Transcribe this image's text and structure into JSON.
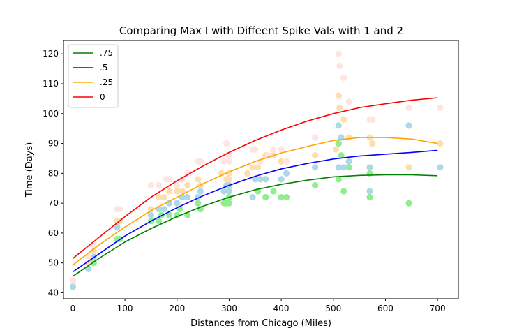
{
  "chart_data": {
    "type": "scatter",
    "title": "Comparing Max I with Diffeent Spike Vals with 1 and 2",
    "xlabel": "Distances from Chicago (Miles)",
    "ylabel": "Time (Days)",
    "xlim": [
      -18,
      740
    ],
    "ylim": [
      38,
      124.5
    ],
    "xticks": [
      0,
      100,
      200,
      300,
      400,
      500,
      600,
      700
    ],
    "yticks": [
      40,
      50,
      60,
      70,
      80,
      90,
      100,
      110,
      120
    ],
    "grid": false,
    "legend_position": "top-left",
    "scatter_series": [
      {
        "key": ".75",
        "color": "#90ee90",
        "points": [
          [
            0,
            44
          ],
          [
            30,
            48
          ],
          [
            40,
            50
          ],
          [
            85,
            58
          ],
          [
            90,
            58
          ],
          [
            150,
            64
          ],
          [
            165,
            64
          ],
          [
            170,
            66
          ],
          [
            185,
            66
          ],
          [
            200,
            66
          ],
          [
            205,
            68
          ],
          [
            220,
            66
          ],
          [
            240,
            70
          ],
          [
            245,
            68
          ],
          [
            290,
            70
          ],
          [
            295,
            70
          ],
          [
            300,
            72
          ],
          [
            300,
            70
          ],
          [
            345,
            72
          ],
          [
            355,
            74
          ],
          [
            370,
            72
          ],
          [
            385,
            74
          ],
          [
            400,
            72
          ],
          [
            410,
            72
          ],
          [
            465,
            76
          ],
          [
            510,
            78
          ],
          [
            510,
            90
          ],
          [
            515,
            86
          ],
          [
            520,
            74
          ],
          [
            530,
            82
          ],
          [
            570,
            72
          ],
          [
            570,
            80
          ],
          [
            645,
            70
          ]
        ]
      },
      {
        "key": ".5",
        "color": "#add8e6",
        "points": [
          [
            0,
            42
          ],
          [
            30,
            48
          ],
          [
            40,
            52
          ],
          [
            85,
            62
          ],
          [
            90,
            64
          ],
          [
            150,
            66
          ],
          [
            165,
            68
          ],
          [
            175,
            68
          ],
          [
            185,
            70
          ],
          [
            200,
            70
          ],
          [
            210,
            72
          ],
          [
            220,
            72
          ],
          [
            240,
            72
          ],
          [
            245,
            74
          ],
          [
            290,
            74
          ],
          [
            295,
            76
          ],
          [
            300,
            74
          ],
          [
            300,
            76
          ],
          [
            345,
            72
          ],
          [
            350,
            78
          ],
          [
            360,
            78
          ],
          [
            370,
            78
          ],
          [
            400,
            78
          ],
          [
            410,
            80
          ],
          [
            465,
            82
          ],
          [
            510,
            82
          ],
          [
            510,
            96
          ],
          [
            515,
            92
          ],
          [
            520,
            82
          ],
          [
            530,
            84
          ],
          [
            570,
            74
          ],
          [
            570,
            82
          ],
          [
            645,
            96
          ],
          [
            705,
            82
          ]
        ]
      },
      {
        "key": ".25",
        "color": "#ffdead",
        "points": [
          [
            0,
            44
          ],
          [
            30,
            50
          ],
          [
            40,
            54
          ],
          [
            85,
            64
          ],
          [
            90,
            64
          ],
          [
            150,
            68
          ],
          [
            165,
            72
          ],
          [
            175,
            72
          ],
          [
            185,
            74
          ],
          [
            200,
            74
          ],
          [
            210,
            74
          ],
          [
            220,
            76
          ],
          [
            240,
            78
          ],
          [
            245,
            76
          ],
          [
            285,
            80
          ],
          [
            295,
            78
          ],
          [
            300,
            80
          ],
          [
            300,
            78
          ],
          [
            335,
            80
          ],
          [
            345,
            82
          ],
          [
            355,
            82
          ],
          [
            370,
            86
          ],
          [
            385,
            86
          ],
          [
            400,
            84
          ],
          [
            410,
            84
          ],
          [
            465,
            86
          ],
          [
            505,
            88
          ],
          [
            510,
            106
          ],
          [
            512,
            102
          ],
          [
            520,
            98
          ],
          [
            530,
            92
          ],
          [
            570,
            92
          ],
          [
            575,
            90
          ],
          [
            645,
            82
          ],
          [
            705,
            90
          ]
        ]
      },
      {
        "key": "0",
        "color": "#ffe4e1",
        "points": [
          [
            0,
            44
          ],
          [
            30,
            52
          ],
          [
            40,
            56
          ],
          [
            85,
            68
          ],
          [
            90,
            68
          ],
          [
            150,
            76
          ],
          [
            165,
            76
          ],
          [
            180,
            78
          ],
          [
            185,
            78
          ],
          [
            200,
            76
          ],
          [
            210,
            78
          ],
          [
            220,
            80
          ],
          [
            240,
            84
          ],
          [
            245,
            84
          ],
          [
            290,
            84
          ],
          [
            295,
            90
          ],
          [
            300,
            84
          ],
          [
            300,
            86
          ],
          [
            345,
            88
          ],
          [
            350,
            88
          ],
          [
            360,
            84
          ],
          [
            375,
            86
          ],
          [
            385,
            88
          ],
          [
            400,
            88
          ],
          [
            410,
            84
          ],
          [
            465,
            92
          ],
          [
            510,
            120
          ],
          [
            512,
            116
          ],
          [
            520,
            112
          ],
          [
            530,
            104
          ],
          [
            570,
            98
          ],
          [
            575,
            98
          ],
          [
            645,
            102
          ],
          [
            705,
            102
          ]
        ]
      }
    ],
    "line_series": [
      {
        "name": ".75",
        "color": "#008000",
        "x": [
          0,
          50,
          100,
          150,
          200,
          250,
          300,
          350,
          400,
          450,
          500,
          550,
          600,
          650,
          700
        ],
        "y": [
          45.5,
          51.5,
          57,
          61.5,
          65.5,
          69,
          72,
          74.5,
          76.3,
          77.7,
          78.8,
          79.3,
          79.5,
          79.5,
          79.2
        ]
      },
      {
        "name": ".5",
        "color": "#0000ff",
        "x": [
          0,
          50,
          100,
          150,
          200,
          250,
          300,
          350,
          400,
          450,
          500,
          550,
          600,
          650,
          700
        ],
        "y": [
          47,
          53,
          59,
          64,
          68.5,
          72.5,
          76,
          79,
          81.5,
          83.3,
          84.8,
          85.8,
          86.4,
          87,
          87.7
        ]
      },
      {
        "name": ".25",
        "color": "#ffa500",
        "x": [
          0,
          50,
          100,
          150,
          200,
          250,
          300,
          350,
          400,
          450,
          500,
          550,
          600,
          650,
          700
        ],
        "y": [
          49.3,
          56,
          62,
          67.5,
          72,
          76.5,
          80.5,
          84,
          86.8,
          89,
          91,
          92,
          92,
          91.5,
          90
        ]
      },
      {
        "name": "0",
        "color": "#ff0000",
        "x": [
          0,
          50,
          100,
          150,
          200,
          250,
          300,
          350,
          400,
          450,
          500,
          550,
          600,
          650,
          700
        ],
        "y": [
          51.5,
          58.5,
          65.5,
          72,
          77.5,
          82.5,
          87,
          91,
          94.5,
          97.5,
          100,
          102,
          103.3,
          104.5,
          105.3
        ]
      }
    ]
  }
}
